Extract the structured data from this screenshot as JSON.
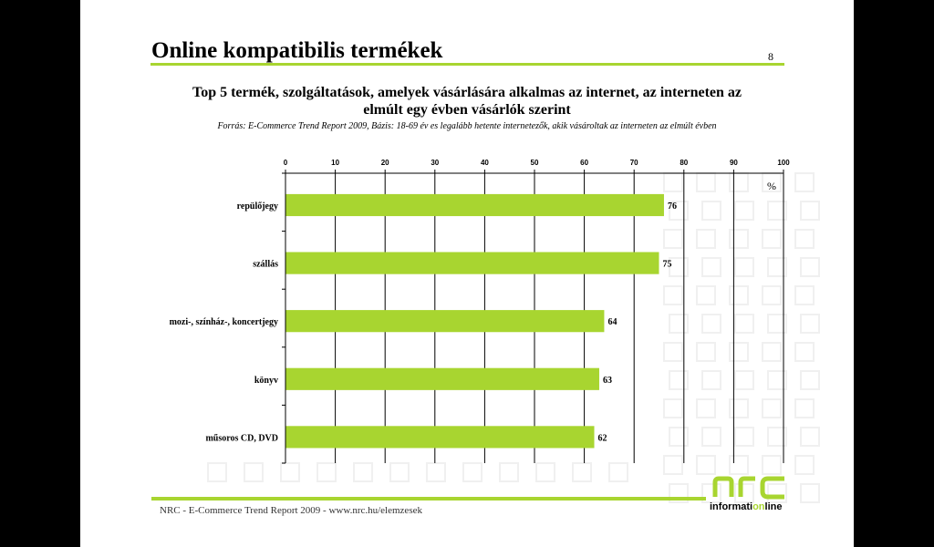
{
  "slide": {
    "title": "Online kompatibilis termékek",
    "page_number": "8",
    "subtitle": "Top 5 termék, szolgáltatások, amelyek vásárlására alkalmas az internet, az interneten az elmúlt egy évben vásárlók szerint",
    "source": "Forrás: E-Commerce Trend Report 2009, Bázis: 18-69 év es legalább hetente internetezők, akik vásároltak az interneten az elmúlt évben",
    "footer": "NRC - E-Commerce Trend Report 2009 - www.nrc.hu/elemzesek",
    "logo": {
      "main": "nrc",
      "tag_prefix": "informati",
      "tag_highlight": "on",
      "tag_suffix": "line"
    }
  },
  "colors": {
    "accent": "#a8d530",
    "bar": "#a8d530",
    "watermark": "#f0f0f0"
  },
  "chart_data": {
    "type": "bar",
    "orientation": "horizontal",
    "categories": [
      "repülőjegy",
      "szállás",
      "mozi-, színház-, koncertjegy",
      "könyv",
      "műsoros CD, DVD"
    ],
    "values": [
      76,
      75,
      64,
      63,
      62
    ],
    "xlim": [
      0,
      100
    ],
    "xticks": [
      0,
      10,
      20,
      30,
      40,
      50,
      60,
      70,
      80,
      90,
      100
    ],
    "unit_label": "%",
    "axis_position": "top",
    "grid": true
  }
}
